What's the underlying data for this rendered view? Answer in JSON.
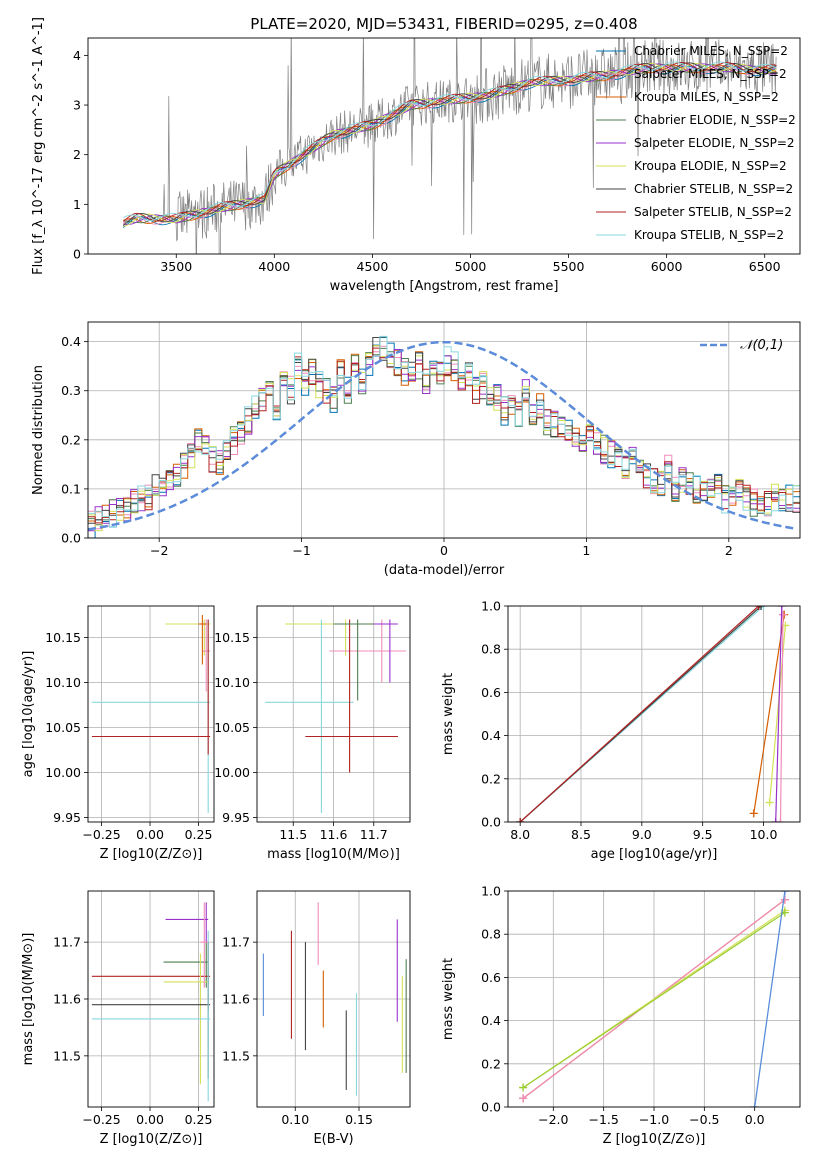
{
  "chart_data": [
    {
      "type": "line",
      "title": "PLATE=2020, MJD=53431, FIBERID=0295, z=0.408",
      "xlabel": "wavelength [Angstrom, rest frame]",
      "ylabel": "Flux [f_λ 10^-17 erg cm^-2 s^-1 A^-1]",
      "xlim": [
        3050,
        6680
      ],
      "ylim": [
        0,
        4.35
      ],
      "xticks": [
        "3500",
        "4000",
        "4500",
        "5000",
        "5500",
        "6000",
        "6500"
      ],
      "yticks": [
        "0",
        "1",
        "2",
        "3",
        "4"
      ],
      "grid": false,
      "legend_position": "top-right",
      "series": [
        {
          "name": "Chabrier MILES, N_SSP=2",
          "color": "#0072b2"
        },
        {
          "name": "Salpeter MILES, N_SSP=2",
          "color": "#f08cba"
        },
        {
          "name": "Kroupa MILES, N_SSP=2",
          "color": "#d55e00"
        },
        {
          "name": "Chabrier ELODIE, N_SSP=2",
          "color": "#4e7d4e"
        },
        {
          "name": "Salpeter ELODIE, N_SSP=2",
          "color": "#9932cc"
        },
        {
          "name": "Kroupa ELODIE, N_SSP=2",
          "color": "#d4e157"
        },
        {
          "name": "Chabrier STELIB, N_SSP=2",
          "color": "#444444"
        },
        {
          "name": "Salpeter STELIB, N_SSP=2",
          "color": "#b22222"
        },
        {
          "name": "Kroupa STELIB, N_SSP=2",
          "color": "#88d8e0"
        }
      ],
      "data_color": "#808080",
      "model_anchors": [
        [
          3230,
          0.62
        ],
        [
          3300,
          0.72
        ],
        [
          3500,
          0.7
        ],
        [
          3700,
          0.9
        ],
        [
          3950,
          1.1
        ],
        [
          4000,
          1.6
        ],
        [
          4300,
          2.4
        ],
        [
          4500,
          2.6
        ],
        [
          4700,
          3.0
        ],
        [
          4900,
          3.1
        ],
        [
          5100,
          3.2
        ],
        [
          5300,
          3.45
        ],
        [
          5500,
          3.5
        ],
        [
          5700,
          3.6
        ],
        [
          5900,
          3.75
        ],
        [
          6100,
          3.75
        ],
        [
          6300,
          3.75
        ],
        [
          6500,
          3.7
        ]
      ]
    },
    {
      "type": "histogram",
      "xlabel": "(data-model)/error",
      "ylabel": "Normed distribution",
      "xlim": [
        -2.5,
        2.5
      ],
      "ylim": [
        0,
        0.44
      ],
      "xticks": [
        "−2",
        "−1",
        "0",
        "1",
        "2"
      ],
      "yticks": [
        "0.0",
        "0.1",
        "0.2",
        "0.3",
        "0.4"
      ],
      "grid": true,
      "legend": "𝒩(0,1)",
      "reference_curve": {
        "name": "𝒩(0,1)",
        "mu": 0,
        "sigma": 1,
        "color": "#5b8bd9"
      },
      "bin_width": 0.1,
      "bin_start": -2.5,
      "base_values": [
        0.03,
        0.04,
        0.045,
        0.05,
        0.055,
        0.06,
        0.07,
        0.08,
        0.085,
        0.1,
        0.11,
        0.12,
        0.13,
        0.15,
        0.17,
        0.2,
        0.19,
        0.16,
        0.15,
        0.18,
        0.2,
        0.22,
        0.24,
        0.26,
        0.28,
        0.3,
        0.27,
        0.33,
        0.3,
        0.35,
        0.32,
        0.34,
        0.31,
        0.3,
        0.28,
        0.34,
        0.3,
        0.35,
        0.32,
        0.36,
        0.38,
        0.39,
        0.37,
        0.36,
        0.34,
        0.33,
        0.35,
        0.32,
        0.33,
        0.34,
        0.36,
        0.35,
        0.33,
        0.34,
        0.3,
        0.31,
        0.28,
        0.29,
        0.26,
        0.27,
        0.25,
        0.3,
        0.26,
        0.27,
        0.24,
        0.23,
        0.22,
        0.21,
        0.2,
        0.19,
        0.22,
        0.2,
        0.18,
        0.17,
        0.16,
        0.15,
        0.16,
        0.14,
        0.13,
        0.12,
        0.11,
        0.14,
        0.1,
        0.12,
        0.11,
        0.1,
        0.1,
        0.09,
        0.1,
        0.08,
        0.09,
        0.1,
        0.08,
        0.07,
        0.08,
        0.07,
        0.08,
        0.07,
        0.08,
        0.08
      ]
    },
    {
      "type": "errorbar",
      "xlabel": "Z [log10(Z/Z⊙)]",
      "ylabel": "age  [log10(age/yr)]",
      "xlim": [
        -0.32,
        0.33
      ],
      "ylim": [
        9.945,
        10.185
      ],
      "xticks": [
        "−0.25",
        "0.00",
        "0.25"
      ],
      "yticks": [
        "9.95",
        "10.00",
        "10.05",
        "10.10",
        "10.15"
      ],
      "grid": true,
      "points": [
        {
          "x": 0.28,
          "y": 10.165,
          "xlo": 0.08,
          "xhi": 0.31,
          "ylo": 10.13,
          "yhi": 10.17,
          "color": "#d4e157"
        },
        {
          "x": 0.29,
          "y": 10.135,
          "xlo": 0.27,
          "xhi": 0.31,
          "ylo": 10.09,
          "yhi": 10.17,
          "color": "#f08cba"
        },
        {
          "x": 0.3,
          "y": 10.078,
          "xlo": -0.3,
          "xhi": 0.31,
          "ylo": 9.955,
          "yhi": 10.17,
          "color": "#88d8e0"
        },
        {
          "x": 0.3,
          "y": 10.04,
          "xlo": -0.3,
          "xhi": 0.31,
          "ylo": 10.02,
          "yhi": 10.17,
          "color": "#b22222"
        },
        {
          "x": 0.27,
          "y": 10.165,
          "xlo": 0.25,
          "xhi": 0.29,
          "ylo": 10.12,
          "yhi": 10.175,
          "color": "#d55e00"
        }
      ]
    },
    {
      "type": "errorbar",
      "xlabel": "mass [log10(M/M⊙)]",
      "ylabel": "",
      "xlim": [
        11.41,
        11.79
      ],
      "ylim": [
        9.945,
        10.185
      ],
      "xticks": [
        "11.5",
        "11.6",
        "11.7"
      ],
      "yticks": [
        "9.95",
        "10.00",
        "10.05",
        "10.10",
        "10.15"
      ],
      "grid": true,
      "points": [
        {
          "x": 11.63,
          "y": 10.165,
          "xlo": 11.48,
          "xhi": 11.74,
          "ylo": 10.13,
          "yhi": 10.17,
          "color": "#d4e157"
        },
        {
          "x": 11.72,
          "y": 10.135,
          "xlo": 11.59,
          "xhi": 11.78,
          "ylo": 10.1,
          "yhi": 10.17,
          "color": "#f08cba"
        },
        {
          "x": 11.57,
          "y": 10.078,
          "xlo": 11.43,
          "xhi": 11.65,
          "ylo": 9.955,
          "yhi": 10.17,
          "color": "#88d8e0"
        },
        {
          "x": 11.64,
          "y": 10.04,
          "xlo": 11.53,
          "xhi": 11.76,
          "ylo": 10.0,
          "yhi": 10.17,
          "color": "#b22222"
        },
        {
          "x": 11.74,
          "y": 10.165,
          "xlo": 11.66,
          "xhi": 11.76,
          "ylo": 10.1,
          "yhi": 10.17,
          "color": "#9932cc"
        },
        {
          "x": 11.66,
          "y": 10.165,
          "xlo": 11.6,
          "xhi": 11.7,
          "ylo": 10.08,
          "yhi": 10.17,
          "color": "#4e7d4e"
        }
      ]
    },
    {
      "type": "line",
      "xlabel": "age  [log10(age/yr)]",
      "ylabel": "mass weight",
      "xlim": [
        7.9,
        10.3
      ],
      "ylim": [
        0,
        1
      ],
      "xticks": [
        "8.0",
        "8.5",
        "9.0",
        "9.5",
        "10.0"
      ],
      "yticks": [
        "0.0",
        "0.2",
        "0.4",
        "0.6",
        "0.8",
        "1.0"
      ],
      "grid": true,
      "series": [
        {
          "x": [
            8.0,
            10.0
          ],
          "y": [
            0.0,
            1.0
          ],
          "color": "#88d8e0"
        },
        {
          "x": [
            8.0,
            9.98
          ],
          "y": [
            0.0,
            1.0
          ],
          "color": "#444444"
        },
        {
          "x": [
            8.0,
            9.96
          ],
          "y": [
            0.0,
            1.0
          ],
          "color": "#b22222"
        },
        {
          "x": [
            9.92,
            10.17
          ],
          "y": [
            0.04,
            0.96
          ],
          "color": "#d55e00"
        },
        {
          "x": [
            10.05,
            10.18
          ],
          "y": [
            0.09,
            0.91
          ],
          "color": "#d4e157"
        },
        {
          "x": [
            10.14,
            10.16
          ],
          "y": [
            0.0,
            0.96
          ],
          "color": "#f08cba"
        },
        {
          "x": [
            10.1,
            10.15
          ],
          "y": [
            0.0,
            1.0
          ],
          "color": "#9932cc"
        }
      ]
    },
    {
      "type": "errorbar",
      "xlabel": "Z [log10(Z/Z⊙)]",
      "ylabel": "mass [log10(M/M⊙)]",
      "xlim": [
        -0.32,
        0.33
      ],
      "ylim": [
        11.41,
        11.79
      ],
      "xticks": [
        "−0.25",
        "0.00",
        "0.25"
      ],
      "yticks": [
        "11.5",
        "11.6",
        "11.7"
      ],
      "grid": true,
      "points": [
        {
          "x": 0.29,
          "y": 11.74,
          "xlo": 0.08,
          "xhi": 0.3,
          "ylo": 11.7,
          "yhi": 11.77,
          "color": "#9932cc"
        },
        {
          "x": 0.29,
          "y": 11.665,
          "xlo": 0.07,
          "xhi": 0.3,
          "ylo": 11.62,
          "yhi": 11.7,
          "color": "#4e7d4e"
        },
        {
          "x": 0.3,
          "y": 11.64,
          "xlo": -0.3,
          "xhi": 0.31,
          "ylo": 11.58,
          "yhi": 11.7,
          "color": "#b22222"
        },
        {
          "x": 0.26,
          "y": 11.63,
          "xlo": 0.07,
          "xhi": 0.3,
          "ylo": 11.45,
          "yhi": 11.68,
          "color": "#d4e157"
        },
        {
          "x": 0.3,
          "y": 11.59,
          "xlo": -0.3,
          "xhi": 0.31,
          "ylo": 11.46,
          "yhi": 11.7,
          "color": "#444444"
        },
        {
          "x": 0.3,
          "y": 11.565,
          "xlo": -0.3,
          "xhi": 0.31,
          "ylo": 11.42,
          "yhi": 11.72,
          "color": "#88d8e0"
        },
        {
          "x": 0.28,
          "y": 11.7,
          "xlo": 0.26,
          "xhi": 0.3,
          "ylo": 11.62,
          "yhi": 11.77,
          "color": "#f08cba"
        }
      ]
    },
    {
      "type": "errorbar",
      "xlabel": "E(B-V)",
      "ylabel": "",
      "xlim": [
        0.07,
        0.19
      ],
      "ylim": [
        11.41,
        11.79
      ],
      "xticks": [
        "0.10",
        "0.15"
      ],
      "yticks": [
        "11.5",
        "11.6",
        "11.7"
      ],
      "grid": true,
      "points": [
        {
          "x": 0.075,
          "y": 11.63,
          "ylo": 11.57,
          "yhi": 11.68,
          "color": "#5b8bd9"
        },
        {
          "x": 0.097,
          "y": 11.62,
          "ylo": 11.53,
          "yhi": 11.72,
          "color": "#b22222"
        },
        {
          "x": 0.108,
          "y": 11.6,
          "ylo": 11.51,
          "yhi": 11.7,
          "color": "#444444"
        },
        {
          "x": 0.118,
          "y": 11.72,
          "ylo": 11.66,
          "yhi": 11.77,
          "color": "#f08cba"
        },
        {
          "x": 0.122,
          "y": 11.6,
          "ylo": 11.55,
          "yhi": 11.65,
          "color": "#d55e00"
        },
        {
          "x": 0.14,
          "y": 11.51,
          "ylo": 11.44,
          "yhi": 11.58,
          "color": "#444444"
        },
        {
          "x": 0.148,
          "y": 11.52,
          "ylo": 11.43,
          "yhi": 11.61,
          "color": "#88d8e0"
        },
        {
          "x": 0.18,
          "y": 11.66,
          "ylo": 11.56,
          "yhi": 11.74,
          "color": "#9932cc"
        },
        {
          "x": 0.184,
          "y": 11.56,
          "ylo": 11.47,
          "yhi": 11.64,
          "color": "#d4e157"
        },
        {
          "x": 0.187,
          "y": 11.57,
          "ylo": 11.47,
          "yhi": 11.67,
          "color": "#4e7d4e"
        }
      ]
    },
    {
      "type": "line",
      "xlabel": "Z [log10(Z/Z⊙)]",
      "ylabel": "mass weight",
      "xlim": [
        -2.45,
        0.45
      ],
      "ylim": [
        0,
        1
      ],
      "xticks": [
        "−2.0",
        "−1.5",
        "−1.0",
        "−0.5",
        "0.0"
      ],
      "yticks": [
        "0.0",
        "0.2",
        "0.4",
        "0.6",
        "0.8",
        "1.0"
      ],
      "grid": true,
      "series": [
        {
          "x": [
            -2.3,
            0.3
          ],
          "y": [
            0.04,
            0.96
          ],
          "color": "#d55e00"
        },
        {
          "x": [
            -2.3,
            0.3
          ],
          "y": [
            0.04,
            0.96
          ],
          "color": "#f08cba"
        },
        {
          "x": [
            -2.3,
            0.3
          ],
          "y": [
            0.09,
            0.91
          ],
          "color": "#d4e157"
        },
        {
          "x": [
            -2.3,
            0.3
          ],
          "y": [
            0.09,
            0.9
          ],
          "color": "#9acd32"
        },
        {
          "x": [
            0.0,
            0.3
          ],
          "y": [
            0.0,
            1.0
          ],
          "color": "#88d8e0"
        },
        {
          "x": [
            0.0,
            0.3
          ],
          "y": [
            0.0,
            1.0
          ],
          "color": "#5b8bd9"
        }
      ]
    }
  ]
}
